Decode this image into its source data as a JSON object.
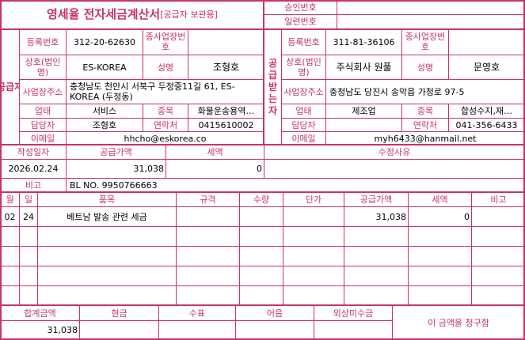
{
  "title": {
    "main": "영세율 전자세금계산서",
    "sub": "[공급자 보관용]"
  },
  "approval": {
    "approval_no_label": "승인번호",
    "approval_no": "",
    "serial_no_label": "일련번호",
    "serial_no": ""
  },
  "supplier": {
    "section_label": "공급자",
    "reg_no_label": "등록번호",
    "reg_no": "312-20-62630",
    "sub_biz_label": "종사업장번호",
    "sub_biz": "",
    "name_label": "상호(법인명)",
    "name": "ES-KOREA",
    "rep_label": "성명",
    "rep": "조형호",
    "address_label": "사업장주소",
    "address": "충청남도 천안시 서북구 두정중11길 61, ES-KOREA (두정동)",
    "biz_type_label": "업태",
    "biz_type": "서비스",
    "biz_item_label": "종목",
    "biz_item": "화물운송용역…",
    "contact_label": "담당자",
    "contact": "조형호",
    "phone_label": "연락처",
    "phone": "0415610002",
    "email_label": "이메일",
    "email": "hhcho@eskorea.co"
  },
  "buyer": {
    "section_label": "공급받는자",
    "reg_no_label": "등록번호",
    "reg_no": "311-81-36106",
    "sub_biz_label": "종사업장번호",
    "sub_biz": "",
    "name_label": "상호(법인명)",
    "name": "주식회사 원풀",
    "rep_label": "성명",
    "rep": "문영호",
    "address_label": "사업장주소",
    "address": "충청남도 당진시 송악읍 가청로 97-5",
    "biz_type_label": "업태",
    "biz_type": "제조업",
    "biz_item_label": "종목",
    "biz_item": "합성수지,재…",
    "contact_label": "담당자",
    "contact": "",
    "phone_label": "연락처",
    "phone": "041-356-6433",
    "email_label": "이메일",
    "email": "myh6433@hanmail.net"
  },
  "summary": {
    "date_label": "작성일자",
    "date": "2026.02.24",
    "supply_label": "공급가액",
    "supply": "31,038",
    "tax_label": "세액",
    "tax": "0",
    "reason_label": "수정사유",
    "reason": "",
    "note_label": "비고",
    "note": "BL NO. 9950766663"
  },
  "items": {
    "headers": [
      "월",
      "일",
      "품목",
      "규격",
      "수량",
      "단가",
      "공급가액",
      "세액",
      "비고"
    ],
    "rows": [
      [
        "02",
        "24",
        "베트남 발송 관련 세금",
        "",
        "",
        "",
        "31,038",
        "0",
        ""
      ],
      [
        "",
        "",
        "",
        "",
        "",
        "",
        "",
        "",
        ""
      ],
      [
        "",
        "",
        "",
        "",
        "",
        "",
        "",
        "",
        ""
      ],
      [
        "",
        "",
        "",
        "",
        "",
        "",
        "",
        "",
        ""
      ],
      [
        "",
        "",
        "",
        "",
        "",
        "",
        "",
        "",
        ""
      ]
    ]
  },
  "totals": {
    "total_label": "합계금액",
    "total": "31,038",
    "cash_label": "현금",
    "cash": "",
    "check_label": "수표",
    "check": "",
    "note_label": "어음",
    "note": "",
    "credit_label": "외상미수금",
    "credit": "",
    "claim_text": "이 금액을 청구함"
  }
}
